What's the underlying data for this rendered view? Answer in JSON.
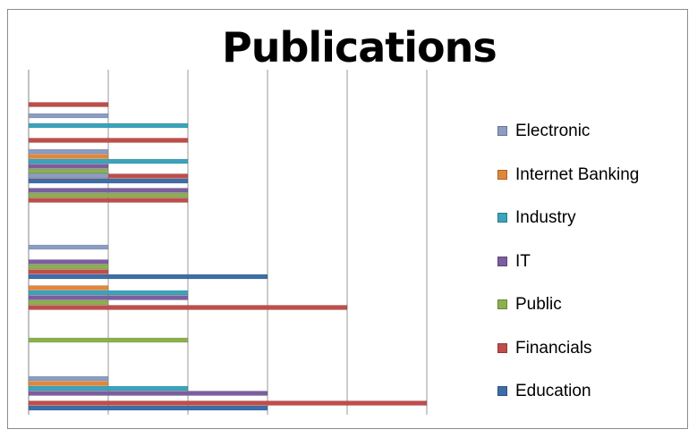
{
  "chart_data": {
    "type": "bar",
    "orientation": "horizontal",
    "title": "Publications",
    "xlim": [
      0,
      5
    ],
    "grid": true,
    "tick_labels_shown": false,
    "legend_position": "right",
    "series": [
      {
        "name": "Electronic",
        "color": "#8b9dc3"
      },
      {
        "name": "Internet Banking",
        "color": "#e0873a"
      },
      {
        "name": "Industry",
        "color": "#3ba3bb"
      },
      {
        "name": "IT",
        "color": "#7a5e9e"
      },
      {
        "name": "Public",
        "color": "#8db04e"
      },
      {
        "name": "Financials",
        "color": "#bf4d4a"
      },
      {
        "name": "Education",
        "color": "#3e6ea8"
      }
    ],
    "groups": [
      {
        "values": {
          "Financials": 1
        }
      },
      {
        "values": {
          "Electronic": 1,
          "Industry": 2,
          "Financials": 2
        }
      },
      {
        "values": {
          "Electronic": 1,
          "Internet Banking": 1,
          "Industry": 2,
          "IT": 1,
          "Public": 1,
          "Financials": 2,
          "Education": 2
        }
      },
      {
        "values": {
          "Electronic": 1,
          "IT": 2,
          "Public": 2,
          "Financials": 2
        }
      },
      {
        "values": {
          "Electronic": 1,
          "IT": 1,
          "Public": 1,
          "Financials": 1,
          "Education": 3
        }
      },
      {
        "values": {
          "Internet Banking": 1,
          "Industry": 2,
          "IT": 2,
          "Public": 1,
          "Financials": 4
        }
      },
      {
        "values": {
          "Public": 2
        }
      },
      {
        "values": {
          "Electronic": 1,
          "Internet Banking": 1,
          "Industry": 2,
          "IT": 3,
          "Financials": 5,
          "Education": 3
        }
      }
    ]
  }
}
